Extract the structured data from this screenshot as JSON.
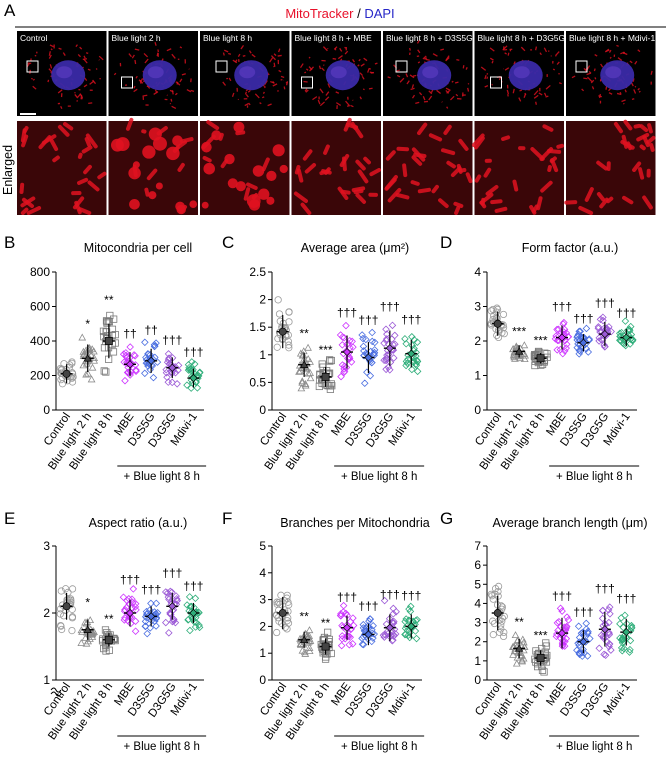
{
  "header": {
    "mitotracker": "MitoTracker",
    "sep": " / ",
    "dapi": "DAPI"
  },
  "panel_a": {
    "letter": "A",
    "enlarged_label": "Enlarged",
    "micrographs": [
      {
        "label": "Control"
      },
      {
        "label": "Blue light 2 h"
      },
      {
        "label": "Blue light 8 h"
      },
      {
        "label": "Blue light 8 h + MBE"
      },
      {
        "label": "Blue light 8 h + D3S5G"
      },
      {
        "label": "Blue light  8 h + D3G5G"
      },
      {
        "label": "Blue light 8 h + Mdivi-1"
      }
    ]
  },
  "categories": [
    "Control",
    "Blue light 2 h",
    "Blue light 8 h",
    "MBE",
    "D3S5G",
    "D3G5G",
    "Mdivi-1"
  ],
  "group_label": "+ Blue light 8 h",
  "colors": {
    "control": "#9a9a9a",
    "bl2": "#8c8c8c",
    "bl8": "#7a7a7a",
    "mbe": "#cc33ff",
    "d3s5g": "#4a6ee0",
    "d3g5g": "#9b59d6",
    "mdivi": "#2fae7a",
    "mito_red": "#e8102a",
    "dapi_blue": "#2626c8"
  },
  "chart_data": [
    {
      "type": "scatter",
      "letter": "B",
      "title": "Mitocondria per cell",
      "ylim": [
        0,
        800
      ],
      "yticks": [
        0,
        200,
        400,
        600,
        800
      ],
      "means": [
        210,
        300,
        400,
        265,
        285,
        245,
        185
      ],
      "sds": [
        55,
        80,
        100,
        70,
        70,
        60,
        55
      ],
      "significance": [
        "",
        "*",
        "**",
        "††",
        "††",
        "†††",
        "†††"
      ]
    },
    {
      "type": "scatter",
      "letter": "C",
      "title": "Average area (μm²)",
      "ylim": [
        0,
        2.5
      ],
      "yticks": [
        0,
        0.5,
        1,
        1.5,
        2,
        2.5
      ],
      "means": [
        1.42,
        0.82,
        0.6,
        1.05,
        0.95,
        1.12,
        1.02
      ],
      "sds": [
        0.3,
        0.22,
        0.18,
        0.3,
        0.28,
        0.32,
        0.25
      ],
      "significance": [
        "",
        "**",
        "***",
        "†††",
        "†††",
        "†††",
        "†††"
      ]
    },
    {
      "type": "scatter",
      "letter": "D",
      "title": "Form factor (a.u.)",
      "ylim": [
        0,
        4
      ],
      "yticks": [
        0,
        1,
        2,
        3,
        4
      ],
      "means": [
        2.5,
        1.7,
        1.5,
        2.1,
        1.95,
        2.2,
        2.1
      ],
      "sds": [
        0.35,
        0.18,
        0.15,
        0.35,
        0.25,
        0.35,
        0.25
      ],
      "significance": [
        "",
        "***",
        "***",
        "†††",
        "†††",
        "†††",
        "†††"
      ]
    },
    {
      "type": "scatter",
      "letter": "E",
      "title": "Aspect ratio (a.u.)",
      "ylim": [
        1,
        3
      ],
      "yticks": [
        1,
        2,
        3
      ],
      "axis_break": true,
      "means": [
        2.1,
        1.75,
        1.6,
        2.0,
        1.95,
        2.1,
        2.0
      ],
      "sds": [
        0.2,
        0.15,
        0.1,
        0.2,
        0.15,
        0.2,
        0.15
      ],
      "significance": [
        "",
        "*",
        "**",
        "†††",
        "†††",
        "†††",
        "†††"
      ]
    },
    {
      "type": "scatter",
      "letter": "F",
      "title": "Branches per Mitochondria",
      "ylim": [
        0,
        5
      ],
      "yticks": [
        0,
        1,
        2,
        3,
        4,
        5
      ],
      "means": [
        2.5,
        1.5,
        1.25,
        1.95,
        1.7,
        1.95,
        2.0
      ],
      "sds": [
        0.6,
        0.3,
        0.3,
        0.45,
        0.4,
        0.5,
        0.45
      ],
      "significance": [
        "",
        "**",
        "**",
        "†††",
        "†††",
        "†††",
        "†††"
      ]
    },
    {
      "type": "scatter",
      "letter": "G",
      "title": "Average branch length (μm)",
      "ylim": [
        0,
        7
      ],
      "yticks": [
        0,
        1,
        2,
        3,
        4,
        5,
        6,
        7
      ],
      "means": [
        3.5,
        1.65,
        1.15,
        2.45,
        2.0,
        2.65,
        2.5
      ],
      "sds": [
        0.9,
        0.5,
        0.4,
        0.8,
        0.6,
        0.9,
        0.7
      ],
      "significance": [
        "",
        "**",
        "***",
        "†††",
        "†††",
        "†††",
        "†††"
      ]
    }
  ]
}
